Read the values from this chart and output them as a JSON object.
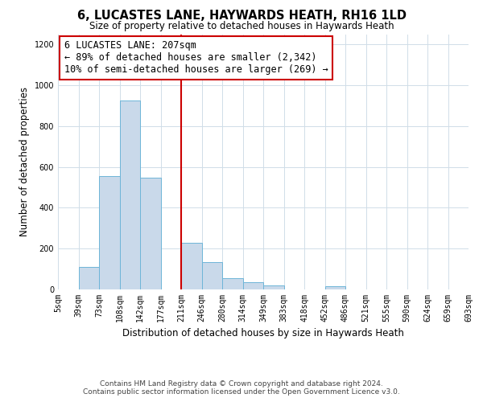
{
  "title": "6, LUCASTES LANE, HAYWARDS HEATH, RH16 1LD",
  "subtitle": "Size of property relative to detached houses in Haywards Heath",
  "xlabel": "Distribution of detached houses by size in Haywards Heath",
  "ylabel": "Number of detached properties",
  "tick_labels": [
    "5sqm",
    "39sqm",
    "73sqm",
    "108sqm",
    "142sqm",
    "177sqm",
    "211sqm",
    "246sqm",
    "280sqm",
    "314sqm",
    "349sqm",
    "383sqm",
    "418sqm",
    "452sqm",
    "486sqm",
    "521sqm",
    "555sqm",
    "590sqm",
    "624sqm",
    "659sqm",
    "693sqm"
  ],
  "bar_heights": [
    0,
    110,
    555,
    925,
    548,
    0,
    230,
    135,
    57,
    35,
    18,
    0,
    0,
    15,
    0,
    0,
    0,
    0,
    0,
    0
  ],
  "bar_color": "#c9d9ea",
  "bar_edgecolor": "#6eb5d8",
  "vline_bin": 6,
  "vline_color": "#cc0000",
  "annotation_lines": [
    "6 LUCASTES LANE: 207sqm",
    "← 89% of detached houses are smaller (2,342)",
    "10% of semi-detached houses are larger (269) →"
  ],
  "annotation_fontsize": 8.5,
  "box_edgecolor": "#cc0000",
  "ylim": [
    0,
    1250
  ],
  "yticks": [
    0,
    200,
    400,
    600,
    800,
    1000,
    1200
  ],
  "footer_line1": "Contains HM Land Registry data © Crown copyright and database right 2024.",
  "footer_line2": "Contains public sector information licensed under the Open Government Licence v3.0.",
  "background_color": "#ffffff",
  "grid_color": "#d0dde8",
  "title_fontsize": 10.5,
  "subtitle_fontsize": 8.5,
  "ylabel_fontsize": 8.5,
  "xlabel_fontsize": 8.5,
  "footer_fontsize": 6.5
}
